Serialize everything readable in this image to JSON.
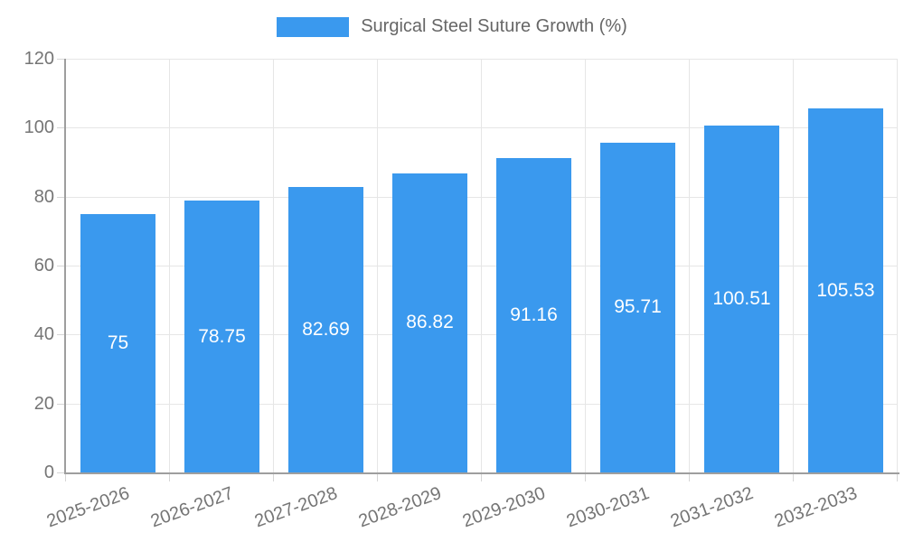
{
  "legend": {
    "label": "Surgical Steel Suture Growth (%)",
    "swatch_color": "#3a99ee",
    "position": "top"
  },
  "chart_data": {
    "type": "bar",
    "title": "",
    "xlabel": "",
    "ylabel": "",
    "categories": [
      "2025-2026",
      "2026-2027",
      "2027-2028",
      "2028-2029",
      "2029-2030",
      "2030-2031",
      "2031-2032",
      "2032-2033"
    ],
    "series": [
      {
        "name": "Surgical Steel Suture Growth (%)",
        "values": [
          75,
          78.75,
          82.69,
          86.82,
          91.16,
          95.71,
          100.51,
          105.53
        ],
        "color": "#3a99ee"
      }
    ],
    "value_labels": [
      "75",
      "78.75",
      "82.69",
      "86.82",
      "91.16",
      "95.71",
      "100.51",
      "105.53"
    ],
    "value_label_color": "#ffffff",
    "ylim": [
      0,
      120
    ],
    "yticks": [
      0,
      20,
      40,
      60,
      80,
      100,
      120
    ],
    "grid": true,
    "legend_position": "top"
  },
  "style": {
    "axis_color": "#9e9e9e",
    "grid_color": "#e6e6e6",
    "tick_mark_color": "#d6d6d6",
    "tick_label_color": "#757575"
  }
}
